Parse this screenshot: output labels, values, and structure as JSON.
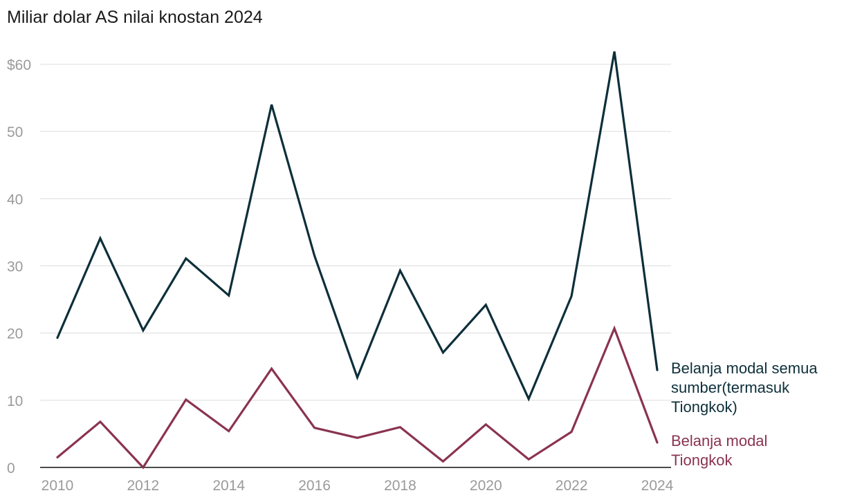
{
  "chart_data": {
    "type": "line",
    "subtitle": "Miliar dolar AS nilai knostan 2024",
    "x": [
      2010,
      2011,
      2012,
      2013,
      2014,
      2015,
      2016,
      2017,
      2018,
      2019,
      2020,
      2021,
      2022,
      2023,
      2024
    ],
    "x_tick_labels": [
      "2010",
      "2012",
      "2014",
      "2016",
      "2018",
      "2020",
      "2022",
      "2024"
    ],
    "y_tick_labels": [
      "0",
      "10",
      "20",
      "30",
      "40",
      "50",
      "$60"
    ],
    "ylim": [
      0,
      62
    ],
    "grid": true,
    "series": [
      {
        "name": "Belanja modal semua sumber(termasuk Tiongkok)",
        "label_lines": [
          "Belanja modal semua",
          "sumber(termasuk",
          "Tiongkok)"
        ],
        "color": "#0d2f3a",
        "values": [
          19.3,
          34.1,
          20.4,
          31.1,
          25.6,
          54.0,
          31.5,
          13.4,
          29.3,
          17.1,
          24.2,
          10.2,
          25.5,
          61.9,
          14.5
        ]
      },
      {
        "name": "Belanja modal Tiongkok",
        "label_lines": [
          "Belanja modal",
          "Tiongkok"
        ],
        "color": "#8a3350",
        "values": [
          1.5,
          6.8,
          0.0,
          10.1,
          5.4,
          14.7,
          5.9,
          4.4,
          6.0,
          0.9,
          6.4,
          1.2,
          5.3,
          20.7,
          3.7
        ]
      }
    ]
  }
}
